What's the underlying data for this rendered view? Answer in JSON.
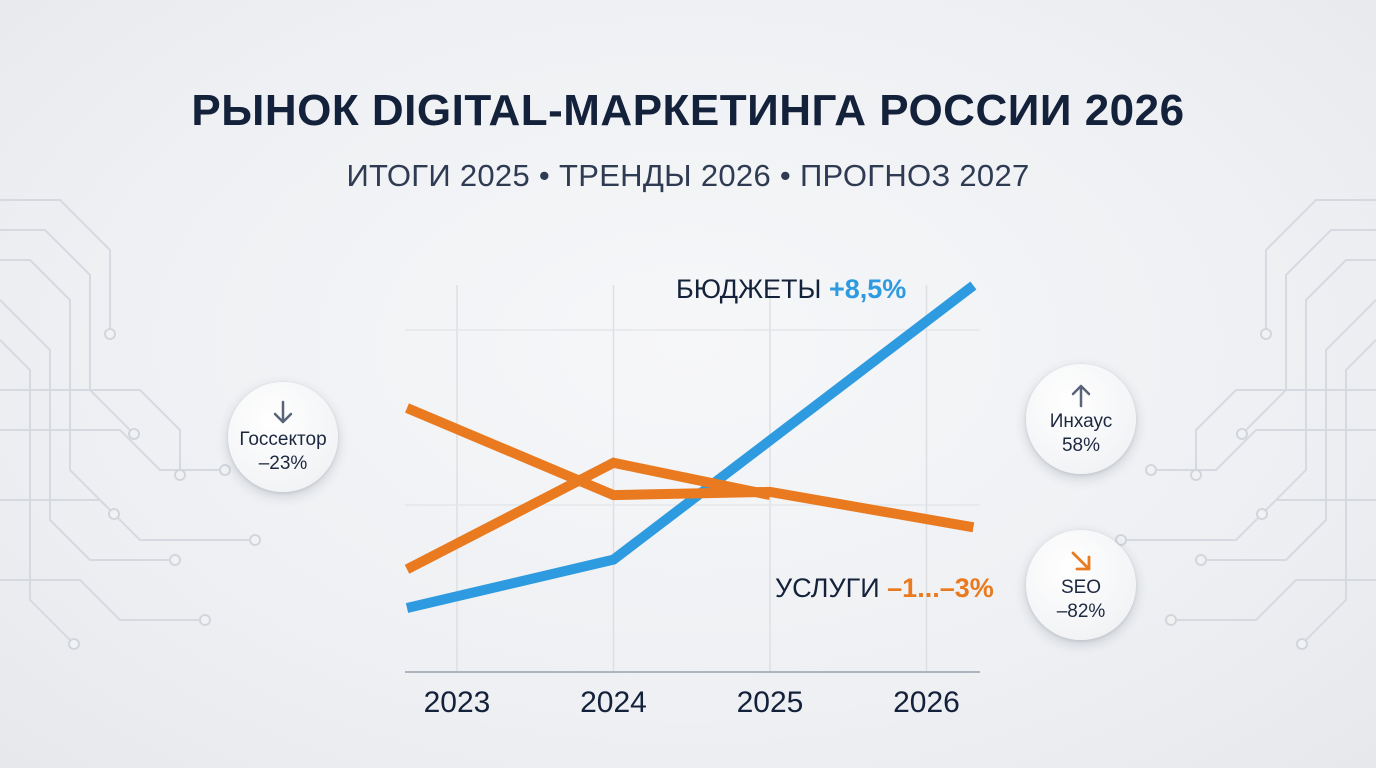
{
  "header": {
    "title": "РЫНОК DIGITAL-МАРКЕТИНГА РОССИИ 2026",
    "subtitle": "ИТОГИ 2025 • ТРЕНДЫ 2026 • ПРОГНОЗ 2027"
  },
  "chart_data": {
    "type": "line",
    "x": [
      "2023",
      "2024",
      "2025",
      "2026"
    ],
    "y_axis_shown": false,
    "grid": true,
    "series": [
      {
        "name": "БЮДЖЕТЫ",
        "annotation": "+8,5%",
        "color": "#2e9be0",
        "points": [
          [
            2023.0,
            18
          ],
          [
            2024.0,
            33
          ],
          [
            2026.3,
            118
          ]
        ]
      },
      {
        "name": "УСЛУГИ",
        "annotation": "–1...–3%",
        "color": "#ea7a1f",
        "points": [
          [
            2023.0,
            80
          ],
          [
            2024.0,
            53
          ],
          [
            2025.0,
            54
          ],
          [
            2026.3,
            43
          ]
        ]
      },
      {
        "name": "",
        "annotation": "",
        "color": "#ea7a1f",
        "points": [
          [
            2023.0,
            30
          ],
          [
            2024.0,
            63
          ],
          [
            2025.0,
            53
          ]
        ]
      }
    ]
  },
  "badges": [
    {
      "name": "goszakaz",
      "label": "Госсектор",
      "value": "–23%",
      "direction": "down",
      "icon": "arrow-down-icon",
      "color": "#5a6478"
    },
    {
      "name": "inhouse",
      "label": "Инхаус",
      "value": "58%",
      "direction": "up",
      "icon": "arrow-up-icon",
      "color": "#5a6478"
    },
    {
      "name": "seo",
      "label": "SEO",
      "value": "–82%",
      "direction": "down-right",
      "icon": "arrow-down-right-icon",
      "color": "#ea7a1f"
    }
  ]
}
